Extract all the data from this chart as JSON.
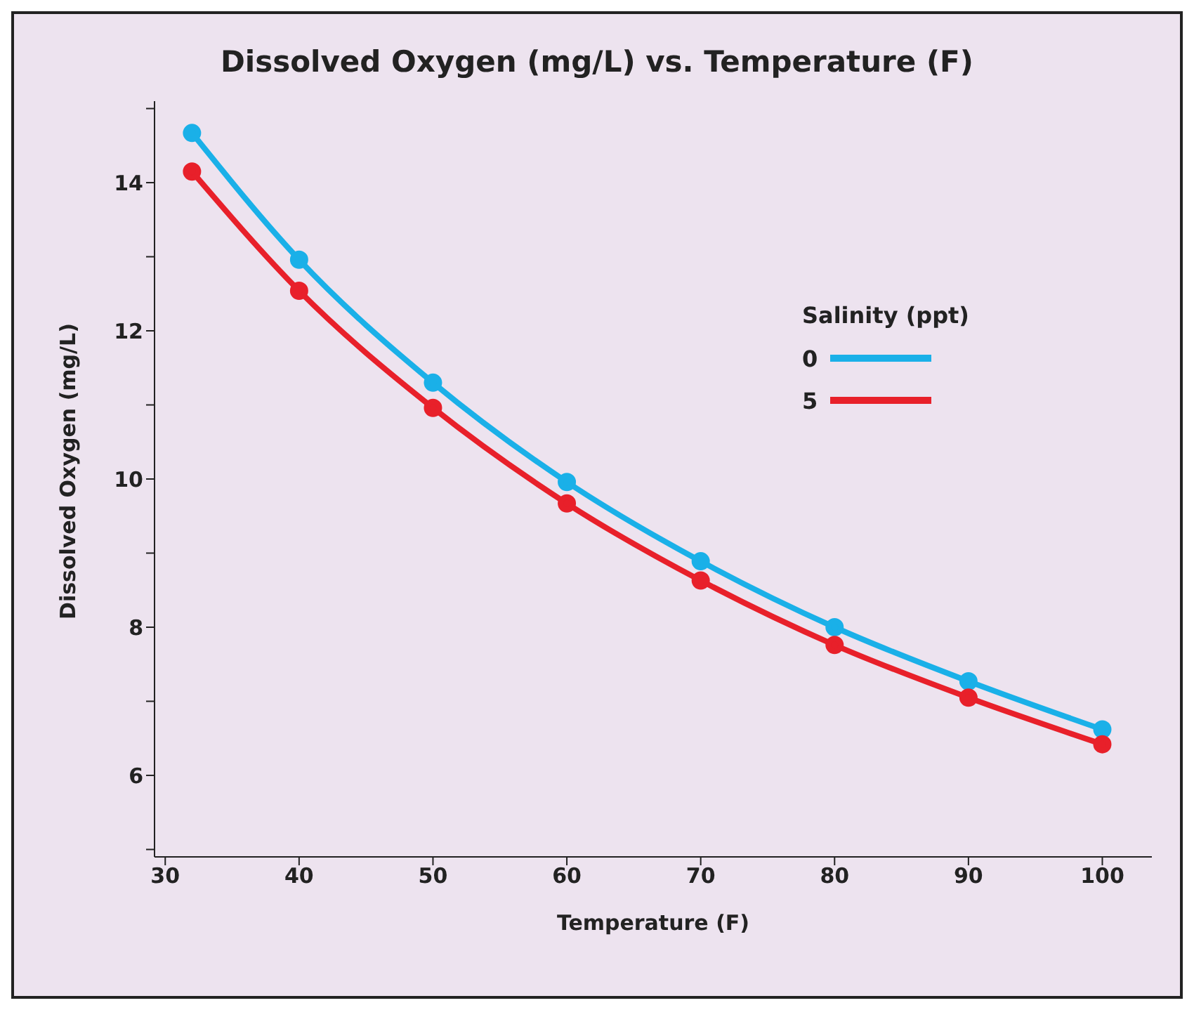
{
  "chart_data": {
    "type": "line",
    "title": "Dissolved Oxygen (mg/L) vs. Temperature (F)",
    "xlabel": "Temperature (F)",
    "ylabel": "Dissolved Oxygen (mg/L)",
    "legend_title": "Salinity (ppt)",
    "x": [
      32,
      40,
      50,
      60,
      70,
      80,
      90,
      100
    ],
    "series": [
      {
        "name": "0",
        "color": "#1ab0e8",
        "values": [
          14.67,
          12.96,
          11.3,
          9.96,
          8.89,
          8.0,
          7.27,
          6.62
        ]
      },
      {
        "name": "5",
        "color": "#e8202a",
        "values": [
          14.15,
          12.54,
          10.96,
          9.67,
          8.63,
          7.76,
          7.05,
          6.42
        ]
      }
    ],
    "xlim": [
      29.2,
      103.7
    ],
    "xticks": [
      30,
      40,
      50,
      60,
      70,
      80,
      90,
      100
    ],
    "ylim": [
      4.9,
      15.1
    ],
    "yticks": [
      {
        "value": 5,
        "label": null
      },
      6,
      {
        "value": 7,
        "label": null
      },
      8,
      {
        "value": 9,
        "label": null
      },
      10,
      {
        "value": 11,
        "label": null
      },
      12,
      {
        "value": 13,
        "label": null
      },
      14,
      {
        "value": 15,
        "label": null
      }
    ],
    "grid": false,
    "legend": "right",
    "marker": "circle",
    "line_style": "solid"
  }
}
